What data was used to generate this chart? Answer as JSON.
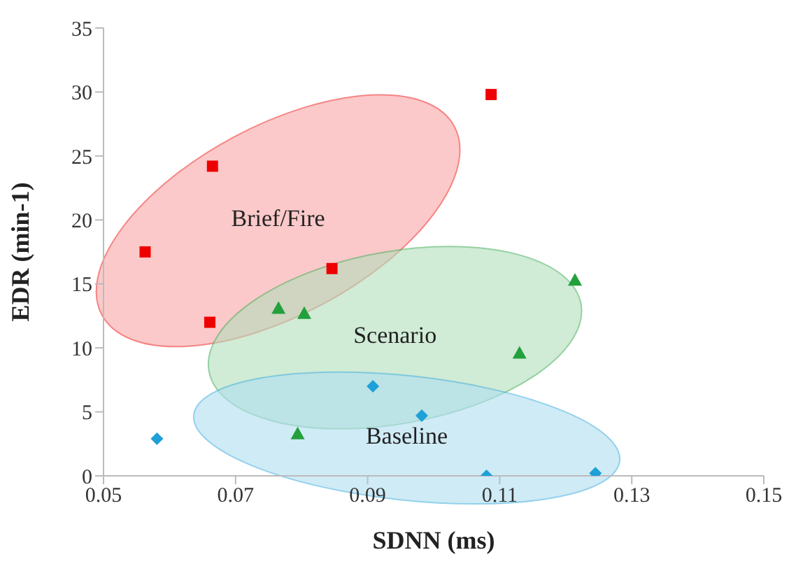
{
  "chart_data": {
    "type": "scatter",
    "xlabel": "SDNN (ms)",
    "ylabel": "EDR (min-1)",
    "xlim": [
      0.05,
      0.15
    ],
    "xticks": [
      0.05,
      0.07,
      0.09,
      0.11,
      0.13,
      0.15
    ],
    "ylim": [
      0,
      35
    ],
    "yticks": [
      0,
      5,
      10,
      15,
      20,
      25,
      30,
      35
    ],
    "grid": false,
    "legend": false,
    "series": [
      {
        "name": "Brief/Fire",
        "color": "#ee0000",
        "marker": "square",
        "x": [
          0.0563,
          0.0665,
          0.1087,
          0.0846,
          0.0661
        ],
        "values": [
          17.5,
          24.2,
          29.8,
          16.2,
          12.0
        ]
      },
      {
        "name": "Scenario",
        "color": "#22a03c",
        "marker": "triangle",
        "x": [
          0.0765,
          0.0804,
          0.1214,
          0.113,
          0.0794
        ],
        "values": [
          13.1,
          12.7,
          15.3,
          9.6,
          3.3
        ]
      },
      {
        "name": "Baseline",
        "color": "#1ea0d8",
        "marker": "diamond",
        "x": [
          0.0581,
          0.0908,
          0.0982,
          0.108,
          0.1245
        ],
        "values": [
          2.9,
          7.0,
          4.7,
          0.0,
          0.2
        ]
      }
    ]
  }
}
